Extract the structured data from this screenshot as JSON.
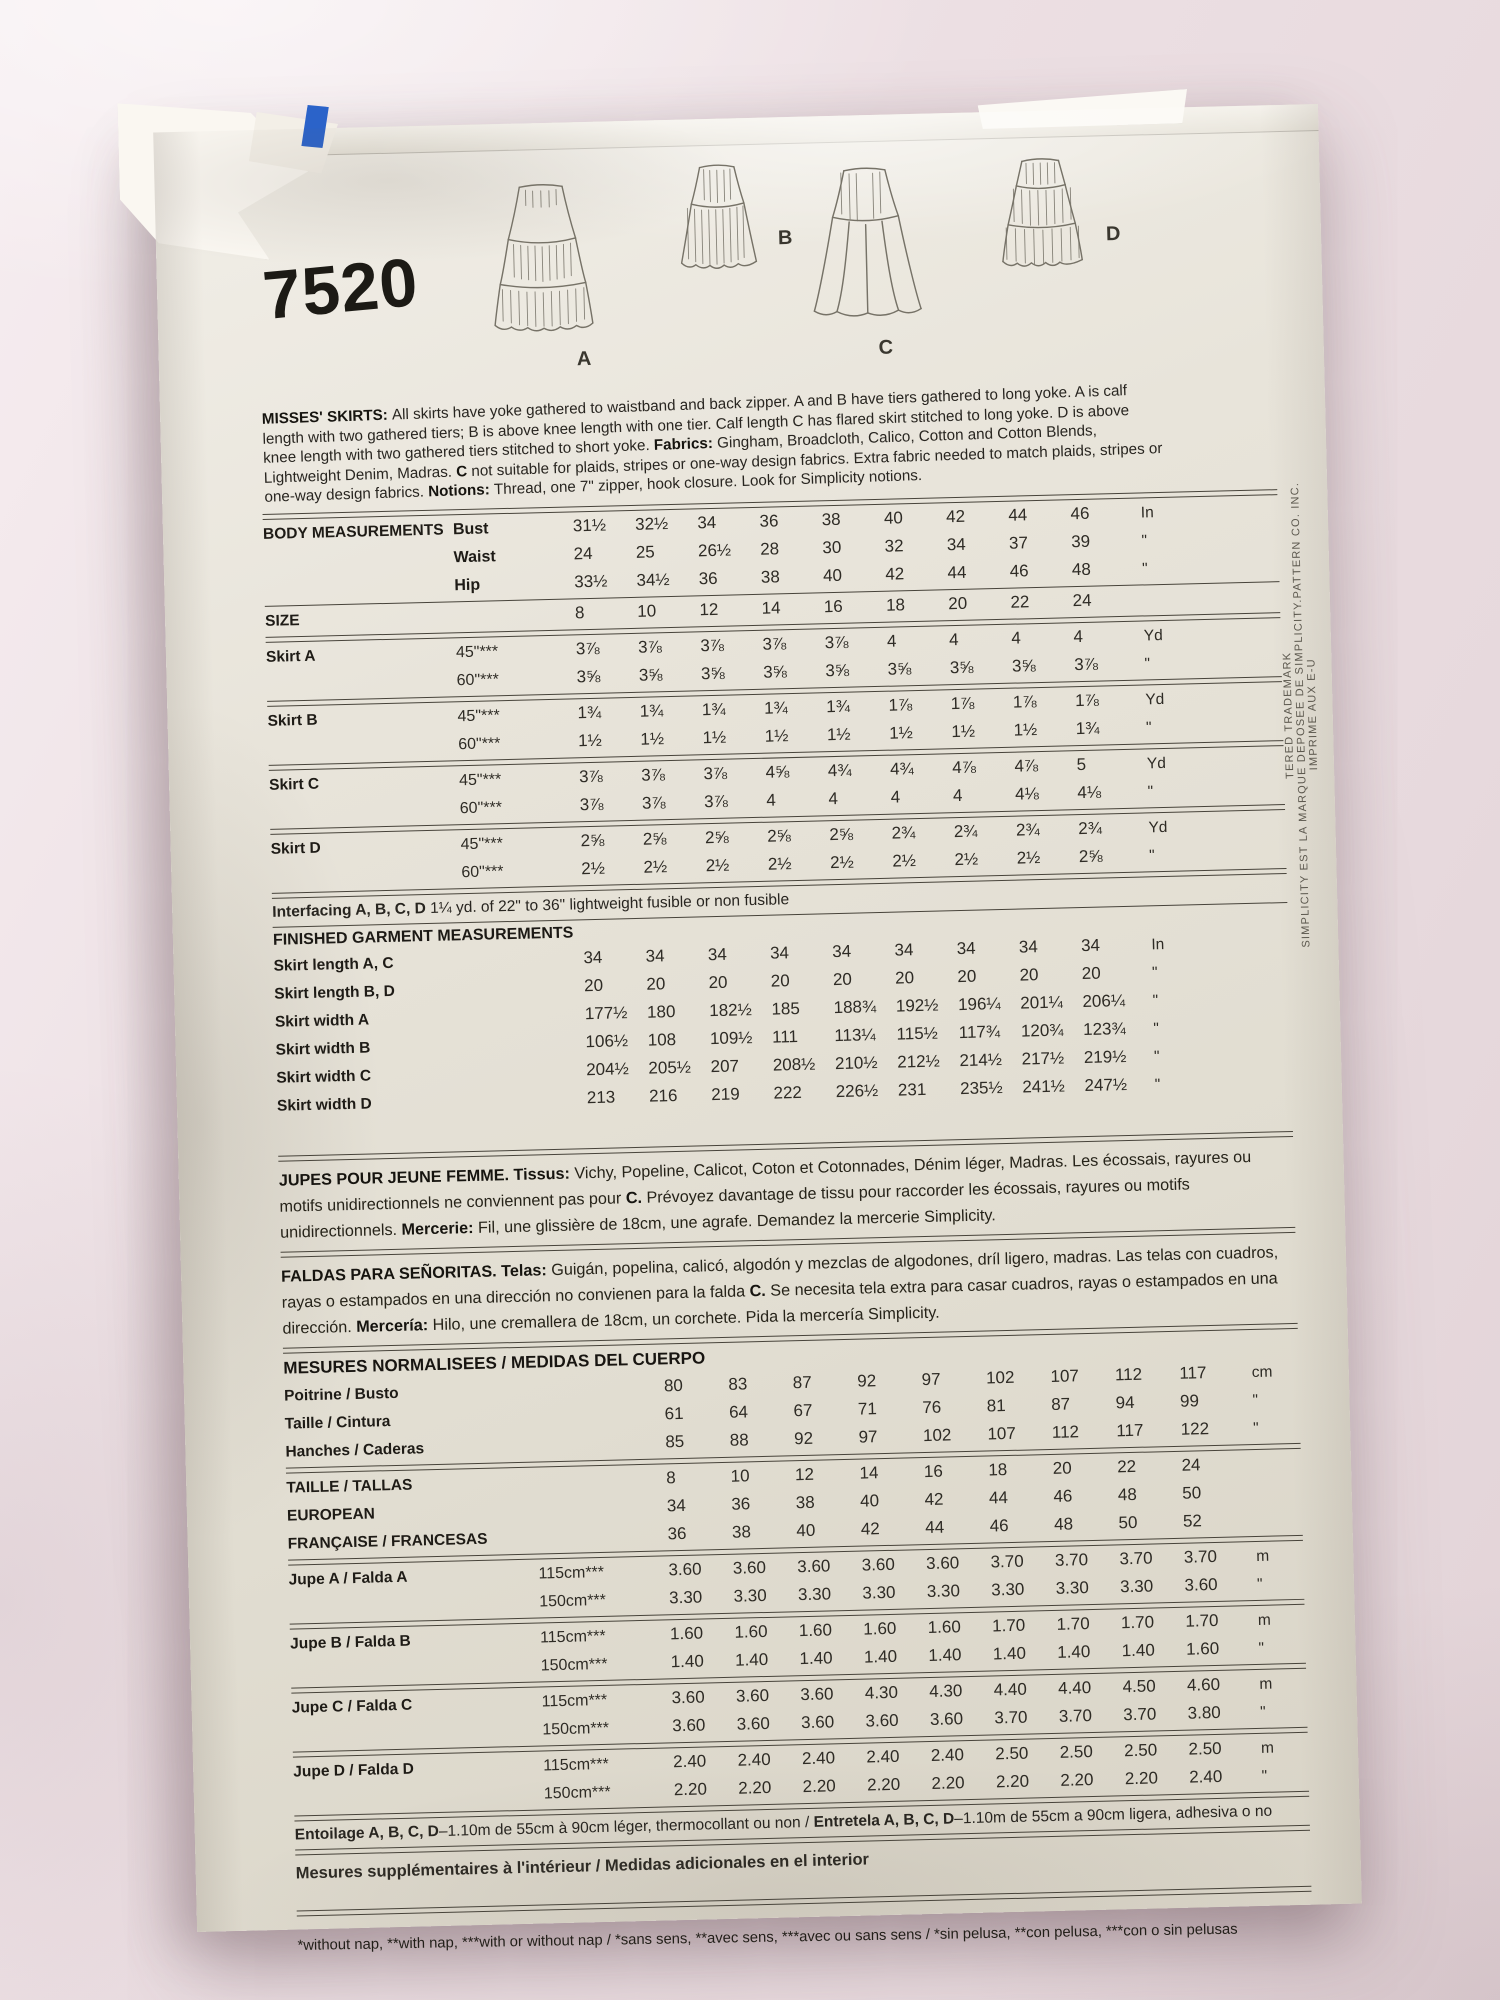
{
  "pattern_number": "7520",
  "view_labels": [
    "A",
    "B",
    "C",
    "D"
  ],
  "description_en": [
    {
      "text": "MISSES' SKIRTS: ",
      "bold": true
    },
    {
      "text": "All skirts have yoke gathered to waistband and back zipper. A and B have tiers gathered to long yoke. A is calf length with two gathered tiers; B is above knee length with one tier. Calf length C has flared skirt stitched to long yoke. D is above knee length with two gathered tiers stitched to short yoke. ",
      "bold": false
    },
    {
      "text": "Fabrics: ",
      "bold": true
    },
    {
      "text": "Gingham, Broadcloth, Calico, Cotton and Cotton Blends, Lightweight Denim, Madras. ",
      "bold": false
    },
    {
      "text": "C",
      "bold": true
    },
    {
      "text": " not suitable for plaids, stripes or one-way design fabrics. Extra fabric needed to match plaids, stripes or one-way design fabrics. ",
      "bold": false
    },
    {
      "text": "Notions: ",
      "bold": true
    },
    {
      "text": "Thread, one 7\" zipper, hook closure. Look for Simplicity notions.",
      "bold": false
    }
  ],
  "imperial": {
    "rows_body": [
      {
        "label": "BODY MEASUREMENTS",
        "sub": "Bust",
        "values": [
          "31½",
          "32½",
          "34",
          "36",
          "38",
          "40",
          "42",
          "44",
          "46"
        ],
        "unit": "In"
      },
      {
        "label": "",
        "sub": "Waist",
        "values": [
          "24",
          "25",
          "26½",
          "28",
          "30",
          "32",
          "34",
          "37",
          "39"
        ],
        "unit": "\""
      },
      {
        "label": "",
        "sub": "Hip",
        "values": [
          "33½",
          "34½",
          "36",
          "38",
          "40",
          "42",
          "44",
          "46",
          "48"
        ],
        "unit": "\""
      }
    ],
    "row_size": {
      "label": "SIZE",
      "values": [
        "8",
        "10",
        "12",
        "14",
        "16",
        "18",
        "20",
        "22",
        "24"
      ],
      "unit": ""
    },
    "rows_yardage": [
      {
        "label": "Skirt A",
        "sub": "45\"***",
        "values": [
          "3⅞",
          "3⅞",
          "3⅞",
          "3⅞",
          "3⅞",
          "4",
          "4",
          "4",
          "4"
        ],
        "unit": "Yd"
      },
      {
        "label": "",
        "sub": "60\"***",
        "values": [
          "3⅝",
          "3⅝",
          "3⅝",
          "3⅝",
          "3⅝",
          "3⅝",
          "3⅝",
          "3⅝",
          "3⅞"
        ],
        "unit": "\""
      },
      {
        "label": "Skirt B",
        "sub": "45\"***",
        "values": [
          "1¾",
          "1¾",
          "1¾",
          "1¾",
          "1¾",
          "1⅞",
          "1⅞",
          "1⅞",
          "1⅞"
        ],
        "unit": "Yd"
      },
      {
        "label": "",
        "sub": "60\"***",
        "values": [
          "1½",
          "1½",
          "1½",
          "1½",
          "1½",
          "1½",
          "1½",
          "1½",
          "1¾"
        ],
        "unit": "\""
      },
      {
        "label": "Skirt C",
        "sub": "45\"***",
        "values": [
          "3⅞",
          "3⅞",
          "3⅞",
          "4⅝",
          "4¾",
          "4¾",
          "4⅞",
          "4⅞",
          "5"
        ],
        "unit": "Yd"
      },
      {
        "label": "",
        "sub": "60\"***",
        "values": [
          "3⅞",
          "3⅞",
          "3⅞",
          "4",
          "4",
          "4",
          "4",
          "4⅛",
          "4⅛"
        ],
        "unit": "\""
      },
      {
        "label": "Skirt D",
        "sub": "45\"***",
        "values": [
          "2⅝",
          "2⅝",
          "2⅝",
          "2⅝",
          "2⅝",
          "2¾",
          "2¾",
          "2¾",
          "2¾"
        ],
        "unit": "Yd"
      },
      {
        "label": "",
        "sub": "60\"***",
        "values": [
          "2½",
          "2½",
          "2½",
          "2½",
          "2½",
          "2½",
          "2½",
          "2½",
          "2⅝"
        ],
        "unit": "\""
      }
    ],
    "interfacing": [
      {
        "text": "Interfacing A, B, C, D ",
        "bold": true
      },
      {
        "text": "1¼ yd. of 22\" to 36\" lightweight fusible or non fusible",
        "bold": false
      }
    ],
    "finished_title": "FINISHED GARMENT MEASUREMENTS",
    "rows_finished": [
      {
        "label": "Skirt length A, C",
        "values": [
          "34",
          "34",
          "34",
          "34",
          "34",
          "34",
          "34",
          "34",
          "34"
        ],
        "unit": "In"
      },
      {
        "label": "Skirt length B, D",
        "values": [
          "20",
          "20",
          "20",
          "20",
          "20",
          "20",
          "20",
          "20",
          "20"
        ],
        "unit": "\""
      },
      {
        "label": "Skirt width A",
        "values": [
          "177½",
          "180",
          "182½",
          "185",
          "188¾",
          "192½",
          "196¼",
          "201¼",
          "206¼"
        ],
        "unit": "\""
      },
      {
        "label": "Skirt width B",
        "values": [
          "106½",
          "108",
          "109½",
          "111",
          "113¼",
          "115½",
          "117¾",
          "120¾",
          "123¾"
        ],
        "unit": "\""
      },
      {
        "label": "Skirt width C",
        "values": [
          "204½",
          "205½",
          "207",
          "208½",
          "210½",
          "212½",
          "214½",
          "217½",
          "219½"
        ],
        "unit": "\""
      },
      {
        "label": "Skirt width D",
        "values": [
          "213",
          "216",
          "219",
          "222",
          "226½",
          "231",
          "235½",
          "241½",
          "247½"
        ],
        "unit": "\""
      }
    ]
  },
  "description_fr": [
    {
      "text": "JUPES POUR JEUNE FEMME. ",
      "bold": true
    },
    {
      "text": "Tissus: ",
      "bold": true
    },
    {
      "text": "Vichy, Popeline, Calicot, Coton et Cotonnades, Dénim léger, Madras. Les écossais, rayures ou motifs unidirectionnels ne conviennent pas pour ",
      "bold": false
    },
    {
      "text": "C. ",
      "bold": true
    },
    {
      "text": "Prévoyez davantage de tissu pour raccorder les écossais, rayures ou motifs unidirectionnels. ",
      "bold": false
    },
    {
      "text": "Mercerie: ",
      "bold": true
    },
    {
      "text": "Fil, une glissière de 18cm, une agrafe. Demandez la mercerie Simplicity.",
      "bold": false
    }
  ],
  "description_es": [
    {
      "text": "FALDAS PARA SEÑORITAS. ",
      "bold": true
    },
    {
      "text": "Telas: ",
      "bold": true
    },
    {
      "text": "Guigán, popelina, calicó, algodón y mezclas de algodones, dríl ligero, madras. Las telas con cuadros, rayas o estampados en una dirección no convienen para la falda ",
      "bold": false
    },
    {
      "text": "C. ",
      "bold": true
    },
    {
      "text": "Se necesita tela extra para casar cuadros, rayas o estampados en una dirección. ",
      "bold": false
    },
    {
      "text": "Mercería: ",
      "bold": true
    },
    {
      "text": "Hilo, une cremallera de 18cm, un corchete. Pida la mercería Simplicity.",
      "bold": false
    }
  ],
  "metric": {
    "header": "MESURES NORMALISEES / MEDIDAS DEL CUERPO",
    "rows_body": [
      {
        "label": "Poitrine / Busto",
        "values": [
          "80",
          "83",
          "87",
          "92",
          "97",
          "102",
          "107",
          "112",
          "117"
        ],
        "unit": "cm"
      },
      {
        "label": "Taille / Cintura",
        "values": [
          "61",
          "64",
          "67",
          "71",
          "76",
          "81",
          "87",
          "94",
          "99"
        ],
        "unit": "\""
      },
      {
        "label": "Hanches / Caderas",
        "values": [
          "85",
          "88",
          "92",
          "97",
          "102",
          "107",
          "112",
          "117",
          "122"
        ],
        "unit": "\""
      }
    ],
    "rows_sizes": [
      {
        "label": "TAILLE / TALLAS",
        "values": [
          "8",
          "10",
          "12",
          "14",
          "16",
          "18",
          "20",
          "22",
          "24"
        ],
        "unit": ""
      },
      {
        "label": "EUROPEAN",
        "values": [
          "34",
          "36",
          "38",
          "40",
          "42",
          "44",
          "46",
          "48",
          "50"
        ],
        "unit": ""
      },
      {
        "label": "FRANÇAISE / FRANCESAS",
        "values": [
          "36",
          "38",
          "40",
          "42",
          "44",
          "46",
          "48",
          "50",
          "52"
        ],
        "unit": ""
      }
    ],
    "rows_yardage": [
      {
        "label": "Jupe A / Falda A",
        "sub": "115cm***",
        "values": [
          "3.60",
          "3.60",
          "3.60",
          "3.60",
          "3.60",
          "3.70",
          "3.70",
          "3.70",
          "3.70"
        ],
        "unit": "m"
      },
      {
        "label": "",
        "sub": "150cm***",
        "values": [
          "3.30",
          "3.30",
          "3.30",
          "3.30",
          "3.30",
          "3.30",
          "3.30",
          "3.30",
          "3.60"
        ],
        "unit": "\""
      },
      {
        "label": "Jupe B / Falda B",
        "sub": "115cm***",
        "values": [
          "1.60",
          "1.60",
          "1.60",
          "1.60",
          "1.60",
          "1.70",
          "1.70",
          "1.70",
          "1.70"
        ],
        "unit": "m"
      },
      {
        "label": "",
        "sub": "150cm***",
        "values": [
          "1.40",
          "1.40",
          "1.40",
          "1.40",
          "1.40",
          "1.40",
          "1.40",
          "1.40",
          "1.60"
        ],
        "unit": "\""
      },
      {
        "label": "Jupe C / Falda C",
        "sub": "115cm***",
        "values": [
          "3.60",
          "3.60",
          "3.60",
          "4.30",
          "4.30",
          "4.40",
          "4.40",
          "4.50",
          "4.60"
        ],
        "unit": "m"
      },
      {
        "label": "",
        "sub": "150cm***",
        "values": [
          "3.60",
          "3.60",
          "3.60",
          "3.60",
          "3.60",
          "3.70",
          "3.70",
          "3.70",
          "3.80"
        ],
        "unit": "\""
      },
      {
        "label": "Jupe D / Falda D",
        "sub": "115cm***",
        "values": [
          "2.40",
          "2.40",
          "2.40",
          "2.40",
          "2.40",
          "2.50",
          "2.50",
          "2.50",
          "2.50"
        ],
        "unit": "m"
      },
      {
        "label": "",
        "sub": "150cm***",
        "values": [
          "2.20",
          "2.20",
          "2.20",
          "2.20",
          "2.20",
          "2.20",
          "2.20",
          "2.20",
          "2.40"
        ],
        "unit": "\""
      }
    ],
    "entoilage": [
      {
        "text": "Entoilage A, B, C, D",
        "bold": true
      },
      {
        "text": "–1.10m de 55cm à 90cm léger, thermocollant ou non / ",
        "bold": false
      },
      {
        "text": "Entretela A, B, C, D",
        "bold": true
      },
      {
        "text": "–1.10m de 55cm a 90cm ligera, adhesiva o no",
        "bold": false
      }
    ],
    "supplement": [
      {
        "text": "Mesures supplémentaires à  l'intérieur / Medidas adicionales en el interior",
        "bold": true
      }
    ]
  },
  "footnote": "*without nap, **with nap, ***with or without nap / *sans sens, **avec sens, ***avec ou sans sens / *sin pelusa, **con pelusa, ***con o sin pelusas",
  "side_text": [
    "TERED TRADEMARK",
    "SIMPLICITY EST LA MARQUE DEPOSEE DE SIMPLICITY.PATTERN CO. INC.",
    "IMPRIME AUX E-U"
  ]
}
